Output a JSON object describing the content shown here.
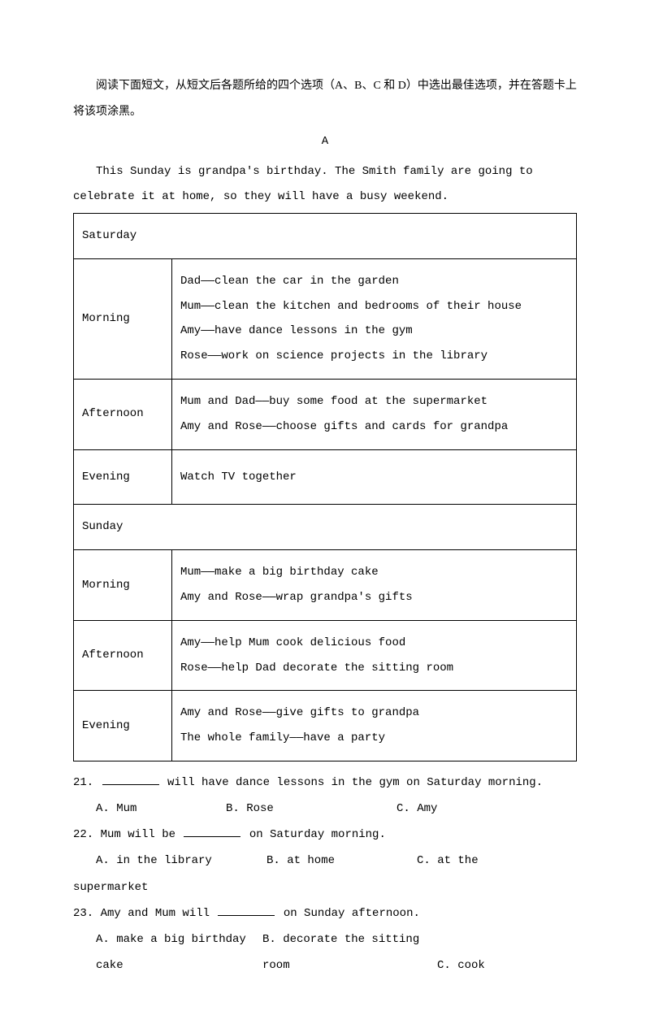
{
  "instructions": "阅读下面短文，从短文后各题所给的四个选项（A、B、C 和 D）中选出最佳选项，并在答题卡上将该项涂黑。",
  "section_letter": "A",
  "passage": "This Sunday is grandpa's birthday. The Smith family are going to celebrate it at home, so they will have a busy weekend.",
  "table": {
    "rows": [
      {
        "type": "header",
        "label": "Saturday"
      },
      {
        "type": "data",
        "time": "Morning",
        "lines": [
          "Dad——clean the car in the garden",
          "Mum——clean the kitchen and bedrooms of their house",
          "Amy——have dance lessons in the gym",
          "Rose——work on science projects in the library"
        ]
      },
      {
        "type": "data",
        "time": "Afternoon",
        "lines": [
          "Mum and Dad——buy some food at the supermarket",
          "Amy and Rose——choose gifts and cards for grandpa"
        ]
      },
      {
        "type": "data",
        "time": "Evening",
        "lines": [
          "Watch TV together"
        ]
      },
      {
        "type": "header",
        "label": "Sunday"
      },
      {
        "type": "data",
        "time": "Morning",
        "lines": [
          "Mum——make a big birthday cake",
          "Amy and Rose——wrap grandpa's gifts"
        ]
      },
      {
        "type": "data",
        "time": "Afternoon",
        "lines": [
          "Amy——help Mum cook delicious food",
          "Rose——help Dad decorate the sitting room"
        ]
      },
      {
        "type": "data",
        "time": "Evening",
        "lines": [
          "Amy and Rose——give gifts to grandpa",
          "The whole family——have a party"
        ]
      }
    ]
  },
  "questions": [
    {
      "num": "21.",
      "pre": "",
      "post": " will have dance lessons in the gym on Saturday morning.",
      "opts": {
        "a": "A. Mum",
        "b": "B. Rose",
        "c": "C. Amy"
      },
      "layout": 1
    },
    {
      "num": "22.",
      "pre": "Mum will be ",
      "post": " on Saturday morning.",
      "opts": {
        "a": "A. in the library",
        "b": "B. at home",
        "c": "C. at the"
      },
      "extra": "supermarket",
      "layout": 2
    },
    {
      "num": "23.",
      "pre": "Amy and Mum will ",
      "post": " on Sunday afternoon.",
      "opts": {
        "a": "A. make a big birthday cake",
        "b": "B. decorate the sitting room",
        "c": "C. cook"
      },
      "layout": 3
    }
  ]
}
